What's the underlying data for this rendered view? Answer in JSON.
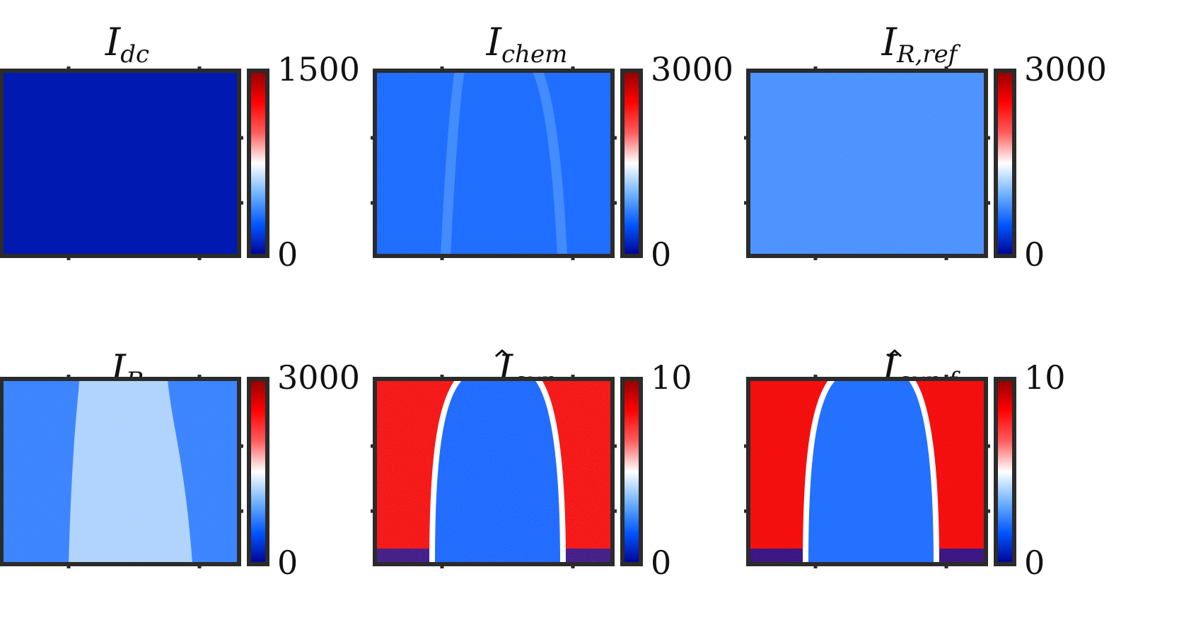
{
  "chart_data": [
    {
      "type": "heatmap",
      "title": "I",
      "title_sub": "dc",
      "title_hat": false,
      "colorbar": {
        "min_label": "0",
        "max_label": "1500",
        "min": 0,
        "max": 1500
      },
      "field": {
        "kind": "uniform",
        "base_level": 0.05
      }
    },
    {
      "type": "heatmap",
      "title": "I",
      "title_sub": "chem",
      "title_hat": false,
      "colorbar": {
        "min_label": "0",
        "max_label": "3000",
        "min": 0,
        "max": 3000
      },
      "field": {
        "kind": "flame-edges",
        "base_level": 0.2,
        "edge_level": 0.27
      }
    },
    {
      "type": "heatmap",
      "title": "I",
      "title_sub": "R,ref",
      "title_hat": false,
      "colorbar": {
        "min_label": "0",
        "max_label": "3000",
        "min": 0,
        "max": 3000
      },
      "field": {
        "kind": "noisy-uniform",
        "base_level": 0.26
      }
    },
    {
      "type": "heatmap",
      "title": "I",
      "title_sub": "R",
      "title_hat": false,
      "colorbar": {
        "min_label": "0",
        "max_label": "3000",
        "min": 0,
        "max": 3000
      },
      "field": {
        "kind": "bright-core",
        "base_level": 0.24,
        "core_level": 0.42
      }
    },
    {
      "type": "heatmap",
      "title": "I",
      "title_sub": "exp",
      "title_hat": true,
      "colorbar": {
        "min_label": "0",
        "max_label": "10",
        "min": 0,
        "max": 10
      },
      "field": {
        "kind": "inverted-core",
        "outer_level": 0.85,
        "core_level": 0.18
      }
    },
    {
      "type": "heatmap",
      "title": "I",
      "title_sub": "exp,f",
      "title_hat": true,
      "colorbar": {
        "min_label": "0",
        "max_label": "10",
        "min": 0,
        "max": 10
      },
      "field": {
        "kind": "inverted-core-smooth",
        "outer_level": 0.85,
        "core_level": 0.2
      }
    }
  ],
  "colormap": {
    "name": "blue-white-red",
    "stops": [
      "#00008f",
      "#0055ff",
      "#6fb2ff",
      "#ffffff",
      "#ff5b5b",
      "#ff0000",
      "#8f0000"
    ]
  },
  "colors": {
    "frame": "#2b2b2b",
    "text": "#111111"
  }
}
